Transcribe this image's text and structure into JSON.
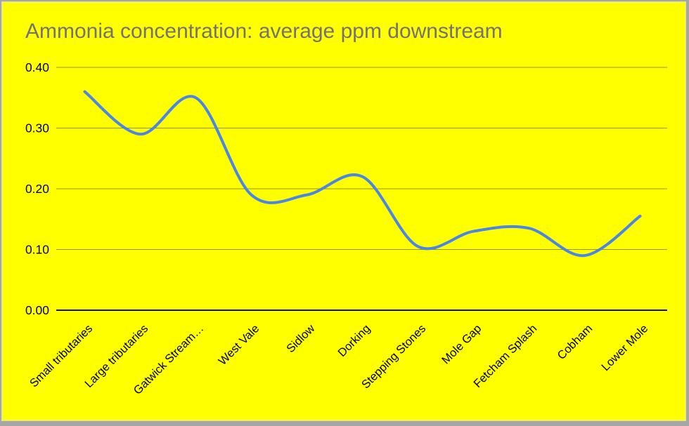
{
  "chart_data": {
    "type": "line",
    "title": "Ammonia concentration: average ppm downstream",
    "categories": [
      "Small tributaries",
      "Large tributaries",
      "Gatwick Stream…",
      "West Vale",
      "Sidlow",
      "Dorking",
      "Stepping Stones",
      "Mole Gap",
      "Fetcham Splash",
      "Cobham",
      "Lower Mole"
    ],
    "values": [
      0.36,
      0.29,
      0.35,
      0.19,
      0.19,
      0.22,
      0.105,
      0.13,
      0.135,
      0.09,
      0.155
    ],
    "xlabel": "",
    "ylabel": "",
    "ylim": [
      0.0,
      0.4
    ],
    "yticks": [
      0.0,
      0.1,
      0.2,
      0.3,
      0.4
    ],
    "ytick_labels": [
      "0.00",
      "0.10",
      "0.20",
      "0.30",
      "0.40"
    ],
    "grid": true,
    "legend": false,
    "smooth": true,
    "line_shape": "spline",
    "xtick_rotation_deg": 45
  },
  "style": {
    "panel_background": "#ffff00",
    "frame_background": "#a6a6a6",
    "title_color": "#737373",
    "line_color": "#4a86e8",
    "gridline_color": "rgba(0,0,0,0.42)",
    "axis_line_color": "#111111",
    "tick_label_color": "#000000"
  }
}
